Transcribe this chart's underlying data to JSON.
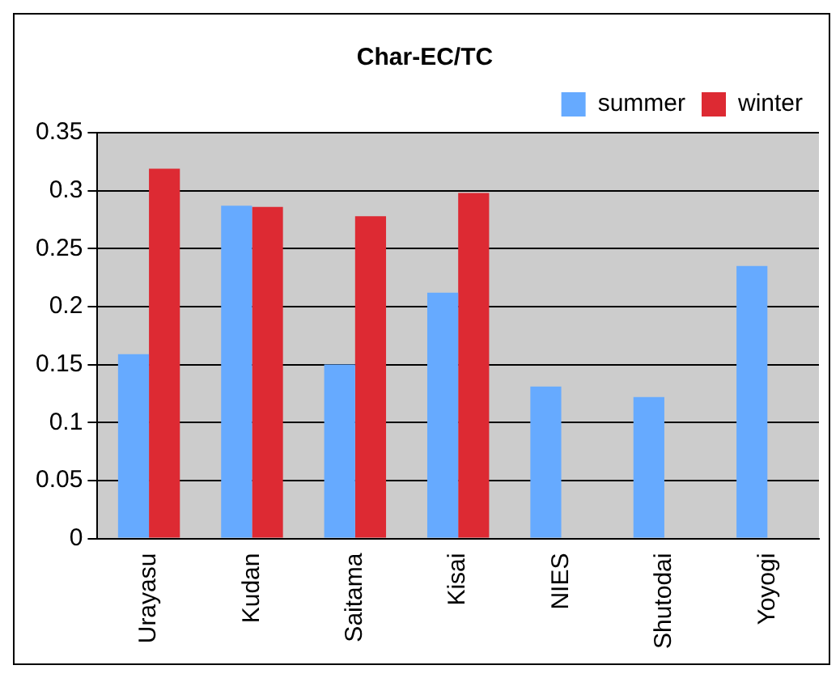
{
  "chart_data": {
    "type": "bar",
    "title": "Char-EC/TC",
    "categories": [
      "Urayasu",
      "Kudan",
      "Saitama",
      "Kisai",
      "NIES",
      "Shutodai",
      "Yoyogi"
    ],
    "series": [
      {
        "name": "summer",
        "color": "#66aaff",
        "values": [
          0.159,
          0.287,
          0.15,
          0.212,
          0.131,
          0.122,
          0.235
        ]
      },
      {
        "name": "winter",
        "color": "#dd2a33",
        "values": [
          0.319,
          0.286,
          0.278,
          0.298,
          null,
          null,
          null
        ]
      }
    ],
    "ylim": [
      0,
      0.35
    ],
    "yticks": [
      0,
      0.05,
      0.1,
      0.15,
      0.2,
      0.25,
      0.3,
      0.35
    ],
    "grid": "y",
    "legend": "top right"
  }
}
